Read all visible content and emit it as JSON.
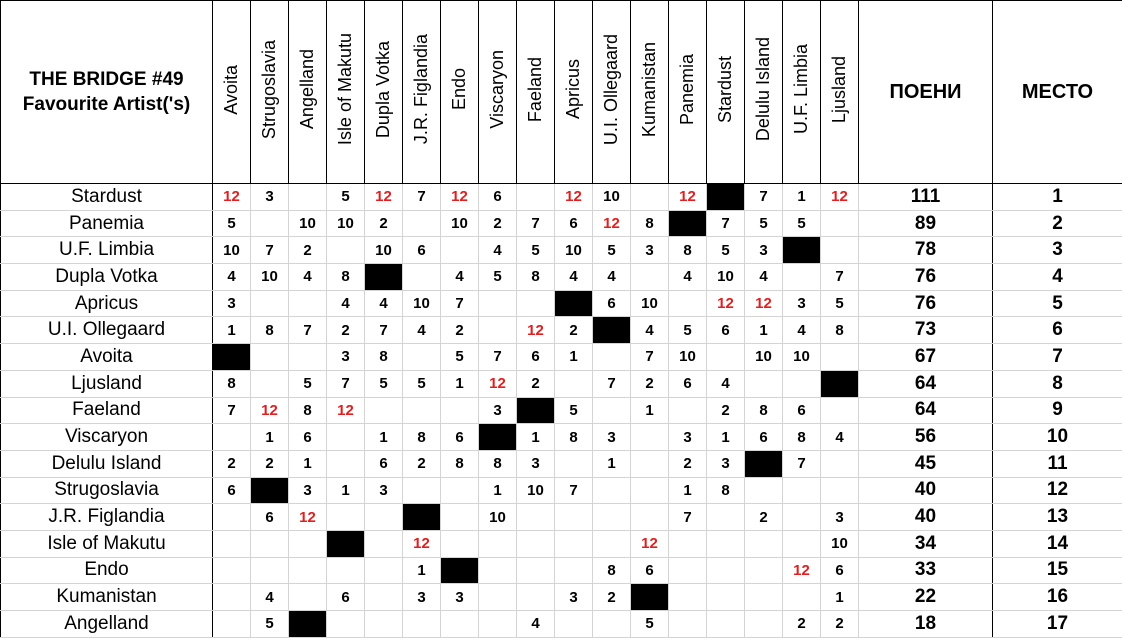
{
  "header": {
    "title_lines": [
      "THE BRIDGE #49",
      "Favourite Artist('s)"
    ],
    "points_header": "ПОЕНИ",
    "place_header": "МЕСТО"
  },
  "columns": [
    "Avoita",
    "Strugoslavia",
    "Angelland",
    "Isle of Makutu",
    "Dupla Votka",
    "J.R. Figlandia",
    "Endo",
    "Viscaryon",
    "Faeland",
    "Apricus",
    "U.I. Ollegaard",
    "Kumanistan",
    "Panemia",
    "Stardust",
    "Delulu Island",
    "U.F. Limbia",
    "Ljusland"
  ],
  "rows": [
    {
      "country": "Stardust",
      "votes": [
        12,
        3,
        null,
        5,
        12,
        7,
        12,
        6,
        null,
        12,
        10,
        null,
        12,
        null,
        7,
        1,
        12
      ],
      "points": 111,
      "place": 1
    },
    {
      "country": "Panemia",
      "votes": [
        5,
        null,
        10,
        10,
        2,
        null,
        10,
        2,
        7,
        6,
        12,
        8,
        null,
        7,
        5,
        5,
        null
      ],
      "points": 89,
      "place": 2
    },
    {
      "country": "U.F. Limbia",
      "votes": [
        10,
        7,
        2,
        null,
        10,
        6,
        null,
        4,
        5,
        10,
        5,
        3,
        8,
        5,
        3,
        null,
        null
      ],
      "points": 78,
      "place": 3
    },
    {
      "country": "Dupla Votka",
      "votes": [
        4,
        10,
        4,
        8,
        null,
        null,
        4,
        5,
        8,
        4,
        4,
        null,
        4,
        10,
        4,
        null,
        7
      ],
      "points": 76,
      "place": 4
    },
    {
      "country": "Apricus",
      "votes": [
        3,
        null,
        null,
        4,
        4,
        10,
        7,
        null,
        null,
        null,
        6,
        10,
        null,
        12,
        12,
        3,
        5
      ],
      "points": 76,
      "place": 5
    },
    {
      "country": "U.I. Ollegaard",
      "votes": [
        1,
        8,
        7,
        2,
        7,
        4,
        2,
        null,
        12,
        2,
        null,
        4,
        5,
        6,
        1,
        4,
        8
      ],
      "points": 73,
      "place": 6
    },
    {
      "country": "Avoita",
      "votes": [
        null,
        null,
        null,
        3,
        8,
        null,
        5,
        7,
        6,
        1,
        null,
        7,
        10,
        null,
        10,
        10,
        null
      ],
      "points": 67,
      "place": 7
    },
    {
      "country": "Ljusland",
      "votes": [
        8,
        null,
        5,
        7,
        5,
        5,
        1,
        12,
        2,
        null,
        7,
        2,
        6,
        4,
        null,
        null,
        null
      ],
      "points": 64,
      "place": 8
    },
    {
      "country": "Faeland",
      "votes": [
        7,
        12,
        8,
        12,
        null,
        null,
        null,
        3,
        null,
        5,
        null,
        1,
        null,
        2,
        8,
        6,
        null
      ],
      "points": 64,
      "place": 9
    },
    {
      "country": "Viscaryon",
      "votes": [
        null,
        1,
        6,
        null,
        1,
        8,
        6,
        null,
        1,
        8,
        3,
        null,
        3,
        1,
        6,
        8,
        4
      ],
      "points": 56,
      "place": 10
    },
    {
      "country": "Delulu Island",
      "votes": [
        2,
        2,
        1,
        null,
        6,
        2,
        8,
        8,
        3,
        null,
        1,
        null,
        2,
        3,
        null,
        7,
        null
      ],
      "points": 45,
      "place": 11
    },
    {
      "country": "Strugoslavia",
      "votes": [
        6,
        null,
        3,
        1,
        3,
        null,
        null,
        1,
        10,
        7,
        null,
        null,
        1,
        8,
        null,
        null,
        null
      ],
      "points": 40,
      "place": 12
    },
    {
      "country": "J.R. Figlandia",
      "votes": [
        null,
        6,
        12,
        null,
        null,
        null,
        null,
        10,
        null,
        null,
        null,
        null,
        7,
        null,
        2,
        null,
        3
      ],
      "points": 40,
      "place": 13
    },
    {
      "country": "Isle of Makutu",
      "votes": [
        null,
        null,
        null,
        null,
        null,
        12,
        null,
        null,
        null,
        null,
        null,
        12,
        null,
        null,
        null,
        null,
        10
      ],
      "points": 34,
      "place": 14
    },
    {
      "country": "Endo",
      "votes": [
        null,
        null,
        null,
        null,
        null,
        1,
        null,
        null,
        null,
        null,
        8,
        6,
        null,
        null,
        null,
        12,
        6
      ],
      "points": 33,
      "place": 15
    },
    {
      "country": "Kumanistan",
      "votes": [
        null,
        4,
        null,
        6,
        null,
        3,
        3,
        null,
        null,
        3,
        2,
        null,
        null,
        null,
        null,
        null,
        1
      ],
      "points": 22,
      "place": 16
    },
    {
      "country": "Angelland",
      "votes": [
        null,
        5,
        null,
        null,
        null,
        null,
        null,
        null,
        4,
        null,
        null,
        5,
        null,
        null,
        null,
        2,
        2
      ],
      "points": 18,
      "place": 17
    }
  ]
}
